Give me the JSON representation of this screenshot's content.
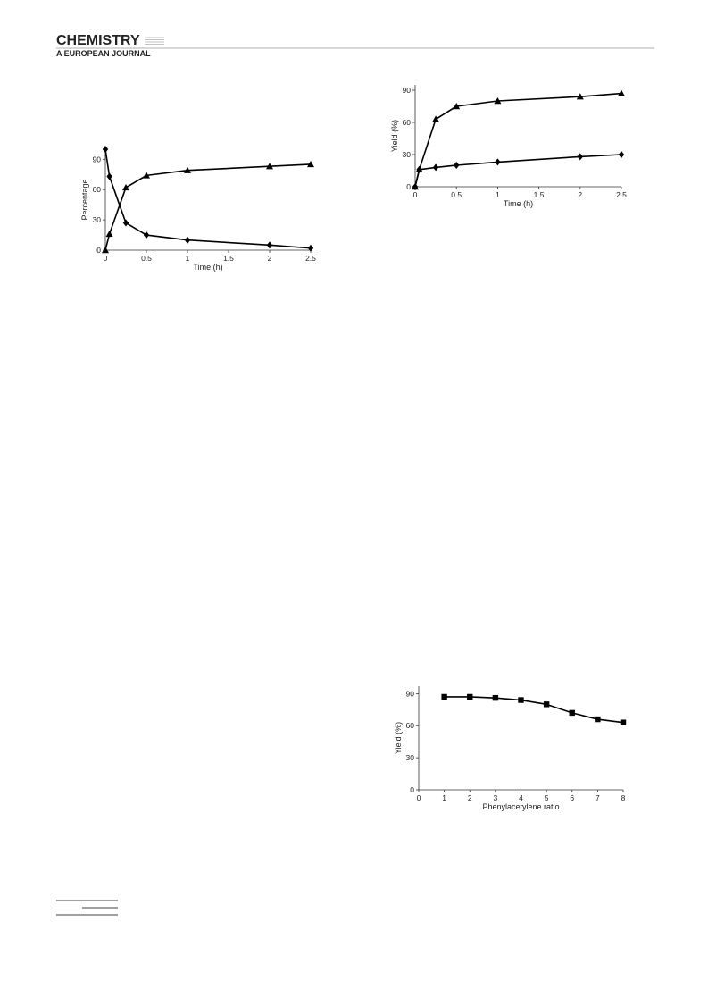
{
  "header": {
    "title": "CHEMISTRY",
    "subtitle": "A EUROPEAN JOURNAL"
  },
  "chart_data": [
    {
      "type": "line",
      "x_label": "Time (h)",
      "y_label": "Percentage",
      "xlim": [
        0,
        2.5
      ],
      "xticks": [
        0,
        0.5,
        1,
        1.5,
        2,
        2.5
      ],
      "ylim": [
        0,
        100
      ],
      "yticks": [
        0,
        30,
        60,
        90
      ],
      "series": [
        {
          "marker": "diamond",
          "color": "#000000",
          "x": [
            0,
            0.05,
            0.25,
            0.5,
            1,
            2,
            2.5
          ],
          "values": [
            100,
            73,
            27,
            15,
            10,
            5,
            2
          ]
        },
        {
          "marker": "triangle",
          "color": "#000000",
          "x": [
            0,
            0.05,
            0.25,
            0.5,
            1,
            2,
            2.5
          ],
          "values": [
            0,
            16,
            62,
            74,
            79,
            83,
            85
          ]
        }
      ]
    },
    {
      "type": "line",
      "x_label": "Time (h)",
      "y_label": "Yield (%)",
      "xlim": [
        0,
        2.5
      ],
      "xticks": [
        0,
        0.5,
        1,
        1.5,
        2,
        2.5
      ],
      "ylim": [
        0,
        95
      ],
      "yticks": [
        0,
        30,
        60,
        90
      ],
      "series": [
        {
          "marker": "triangle",
          "color": "#000000",
          "x": [
            0,
            0.05,
            0.25,
            0.5,
            1,
            2,
            2.5
          ],
          "values": [
            0,
            16,
            63,
            75,
            80,
            84,
            87
          ]
        },
        {
          "marker": "diamond",
          "color": "#000000",
          "x": [
            0,
            0.05,
            0.25,
            0.5,
            1,
            2,
            2.5
          ],
          "values": [
            0,
            16,
            18,
            20,
            23,
            28,
            30
          ]
        }
      ]
    },
    {
      "type": "line",
      "x_label": "Phenylacetylene ratio",
      "y_label": "Yield (%)",
      "xlim": [
        0,
        8
      ],
      "xticks": [
        0,
        1,
        2,
        3,
        4,
        5,
        6,
        7,
        8
      ],
      "ylim": [
        0,
        97
      ],
      "yticks": [
        0,
        30,
        60,
        90
      ],
      "series": [
        {
          "marker": "square",
          "color": "#000000",
          "x": [
            1,
            2,
            3,
            4,
            5,
            6,
            7,
            8
          ],
          "values": [
            87,
            87,
            86,
            84,
            80,
            72,
            66,
            63
          ]
        }
      ]
    }
  ]
}
